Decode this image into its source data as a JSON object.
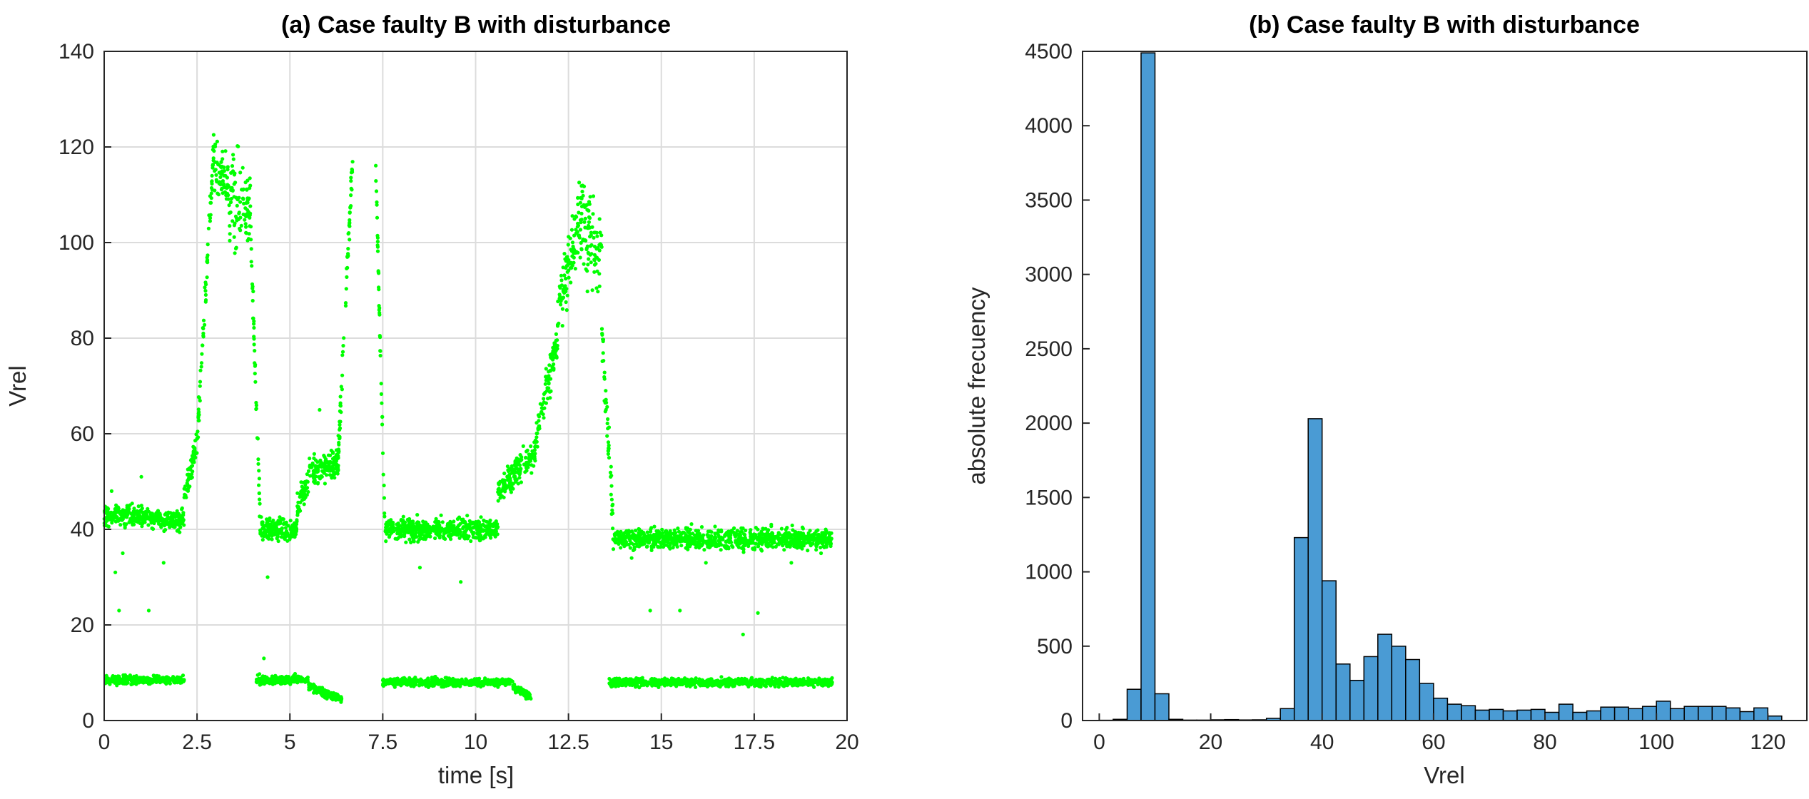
{
  "chart_data": [
    {
      "type": "scatter",
      "title": "(a) Case faulty B with disturbance",
      "xlabel": "time [s]",
      "ylabel": "Vrel",
      "xlim": [
        0,
        20
      ],
      "ylim": [
        0,
        140
      ],
      "xticks": [
        0,
        2.5,
        5,
        7.5,
        10,
        12.5,
        15,
        17.5,
        20
      ],
      "xticklabels": [
        "0",
        "2.5",
        "5",
        "7.5",
        "10",
        "12.5",
        "15",
        "17.5",
        "20"
      ],
      "yticks": [
        0,
        20,
        40,
        60,
        80,
        100,
        120,
        140
      ],
      "grid": true,
      "marker_color": "#00ff00",
      "series": [
        {
          "segments": [
            {
              "x": [
                0,
                2.15
              ],
              "y_center": [
                43,
                42
              ],
              "spread": 3
            },
            {
              "x": [
                2.15,
                2.5
              ],
              "y_center": [
                47,
                58
              ],
              "spread": 4
            },
            {
              "x": [
                2.5,
                2.95
              ],
              "y_center": [
                58,
                120
              ],
              "spread": 5
            },
            {
              "x": [
                2.95,
                3.35
              ],
              "y_center": [
                115,
                112
              ],
              "spread": 8
            },
            {
              "x": [
                3.35,
                3.95
              ],
              "y_center": [
                108,
                108
              ],
              "spread": 14
            },
            {
              "x": [
                3.95,
                4.2
              ],
              "y_center": [
                100,
                42
              ],
              "spread": 5
            },
            {
              "x": [
                4.2,
                5.2
              ],
              "y_center": [
                40,
                40
              ],
              "spread": 3
            },
            {
              "x": [
                5.2,
                5.5
              ],
              "y_center": [
                45,
                50
              ],
              "spread": 4
            },
            {
              "x": [
                5.5,
                6.3
              ],
              "y_center": [
                52,
                54
              ],
              "spread": 5
            },
            {
              "x": [
                6.3,
                6.7
              ],
              "y_center": [
                55,
                120
              ],
              "spread": 5
            },
            {
              "x": [
                7.3,
                7.55
              ],
              "y_center": [
                120,
                42
              ],
              "spread": 4
            },
            {
              "x": [
                7.55,
                10.6
              ],
              "y_center": [
                40,
                40
              ],
              "spread": 3
            },
            {
              "x": [
                10.6,
                11.6
              ],
              "y_center": [
                48,
                56
              ],
              "spread": 4
            },
            {
              "x": [
                11.6,
                12.2
              ],
              "y_center": [
                58,
                80
              ],
              "spread": 6
            },
            {
              "x": [
                12.2,
                12.8
              ],
              "y_center": [
                85,
                105
              ],
              "spread": 10
            },
            {
              "x": [
                12.8,
                13.4
              ],
              "y_center": [
                105,
                98
              ],
              "spread": 14
            },
            {
              "x": [
                13.4,
                13.7
              ],
              "y_center": [
                80,
                42
              ],
              "spread": 6
            },
            {
              "x": [
                13.7,
                19.6
              ],
              "y_center": [
                38,
                38
              ],
              "spread": 3
            },
            {
              "x": [
                0,
                2.15
              ],
              "y_center": [
                8.5,
                8.5
              ],
              "spread": 1.2
            },
            {
              "x": [
                4.1,
                5.5
              ],
              "y_center": [
                8.5,
                8.5
              ],
              "spread": 1.2
            },
            {
              "x": [
                5.5,
                6.4
              ],
              "y_center": [
                7,
                4.5
              ],
              "spread": 1.2
            },
            {
              "x": [
                7.5,
                11.0
              ],
              "y_center": [
                8,
                8
              ],
              "spread": 1.2
            },
            {
              "x": [
                11.0,
                11.5
              ],
              "y_center": [
                7,
                5
              ],
              "spread": 1.2
            },
            {
              "x": [
                13.6,
                19.6
              ],
              "y_center": [
                8,
                8
              ],
              "spread": 1.2
            }
          ],
          "outliers": [
            [
              0.4,
              23
            ],
            [
              1.2,
              23
            ],
            [
              0.3,
              31
            ],
            [
              0.5,
              35
            ],
            [
              1.6,
              33
            ],
            [
              4.4,
              30
            ],
            [
              4.3,
              13
            ],
            [
              5.8,
              65
            ],
            [
              8.5,
              32
            ],
            [
              9.6,
              29
            ],
            [
              14.2,
              34
            ],
            [
              14.7,
              23
            ],
            [
              15.5,
              23
            ],
            [
              16.2,
              33
            ],
            [
              17.2,
              18
            ],
            [
              17.6,
              22.5
            ],
            [
              18.5,
              33
            ],
            [
              19.3,
              35
            ],
            [
              1.0,
              51
            ],
            [
              0.2,
              48
            ]
          ]
        }
      ]
    },
    {
      "type": "bar",
      "title": "(b) Case faulty B with disturbance",
      "xlabel": "Vrel",
      "ylabel": "absolute frecuency",
      "xlim": [
        -3,
        127
      ],
      "ylim": [
        0,
        4500
      ],
      "xticks": [
        0,
        20,
        40,
        60,
        80,
        100,
        120
      ],
      "yticks": [
        0,
        500,
        1000,
        1500,
        2000,
        2500,
        3000,
        3500,
        4000,
        4500
      ],
      "grid": false,
      "bar_color": "#4a9bd4",
      "bin_width": 2.5,
      "bin_starts": [
        0,
        2.5,
        5,
        7.5,
        10,
        12.5,
        15,
        17.5,
        20,
        22.5,
        25,
        27.5,
        30,
        32.5,
        35,
        37.5,
        40,
        42.5,
        45,
        47.5,
        50,
        52.5,
        55,
        57.5,
        60,
        62.5,
        65,
        67.5,
        70,
        72.5,
        75,
        77.5,
        80,
        82.5,
        85,
        87.5,
        90,
        92.5,
        95,
        97.5,
        100,
        102.5,
        105,
        107.5,
        110,
        112.5,
        115,
        117.5,
        120
      ],
      "values": [
        2,
        8,
        210,
        4490,
        180,
        8,
        3,
        3,
        5,
        6,
        4,
        5,
        15,
        80,
        1230,
        2030,
        940,
        380,
        270,
        430,
        580,
        500,
        410,
        250,
        150,
        110,
        100,
        70,
        75,
        65,
        70,
        75,
        55,
        110,
        55,
        65,
        90,
        90,
        80,
        95,
        130,
        80,
        95,
        95,
        95,
        85,
        60,
        85,
        30
      ]
    }
  ]
}
